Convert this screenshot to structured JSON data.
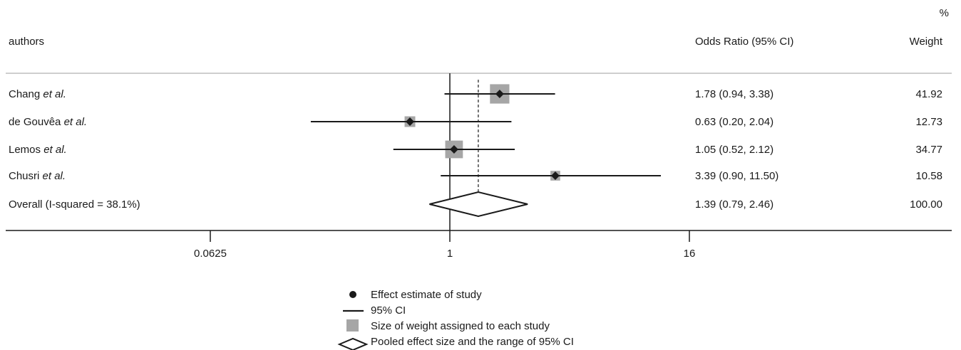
{
  "chart_data": {
    "type": "forest",
    "x_scale": "log2",
    "xlim": [
      0.02,
      100
    ],
    "x_ticks": [
      0.0625,
      1,
      16
    ],
    "x_tick_labels": [
      "0.0625",
      "1",
      "16"
    ],
    "reference_line": 1,
    "pooled_line": 1.39,
    "headers": {
      "authors": "authors",
      "or": "Odds Ratio (95% CI)",
      "weight_unit": "%",
      "weight": "Weight"
    },
    "studies": [
      {
        "name": "Chang",
        "suffix": "et al.",
        "or": 1.78,
        "lo": 0.94,
        "hi": 3.38,
        "or_text": "1.78 (0.94, 3.38)",
        "weight": 41.92,
        "weight_text": "41.92"
      },
      {
        "name": "de Gouvêa",
        "suffix": "et al.",
        "or": 0.63,
        "lo": 0.2,
        "hi": 2.04,
        "or_text": "0.63 (0.20, 2.04)",
        "weight": 12.73,
        "weight_text": "12.73"
      },
      {
        "name": "Lemos",
        "suffix": "et al.",
        "or": 1.05,
        "lo": 0.52,
        "hi": 2.12,
        "or_text": "1.05 (0.52, 2.12)",
        "weight": 34.77,
        "weight_text": "34.77"
      },
      {
        "name": "Chusri",
        "suffix": "et al.",
        "or": 3.39,
        "lo": 0.9,
        "hi": 11.5,
        "or_text": "3.39 (0.90, 11.50)",
        "weight": 10.58,
        "weight_text": "10.58"
      }
    ],
    "overall": {
      "label": "Overall (I-squared = 38.1%)",
      "or": 1.39,
      "lo": 0.79,
      "hi": 2.46,
      "or_text": "1.39 (0.79, 2.46)",
      "weight_text": "100.00"
    },
    "legend": [
      {
        "symbol": "dot",
        "label": "Effect estimate of study"
      },
      {
        "symbol": "line",
        "label": "95% CI"
      },
      {
        "symbol": "square",
        "label": "Size of weight assigned to each study"
      },
      {
        "symbol": "diamond",
        "label": "Pooled effect size and the range of 95% CI"
      }
    ],
    "colors": {
      "ink": "#1a1a1a",
      "square": "#a6a6a6",
      "rule": "#bdbdbd"
    }
  }
}
